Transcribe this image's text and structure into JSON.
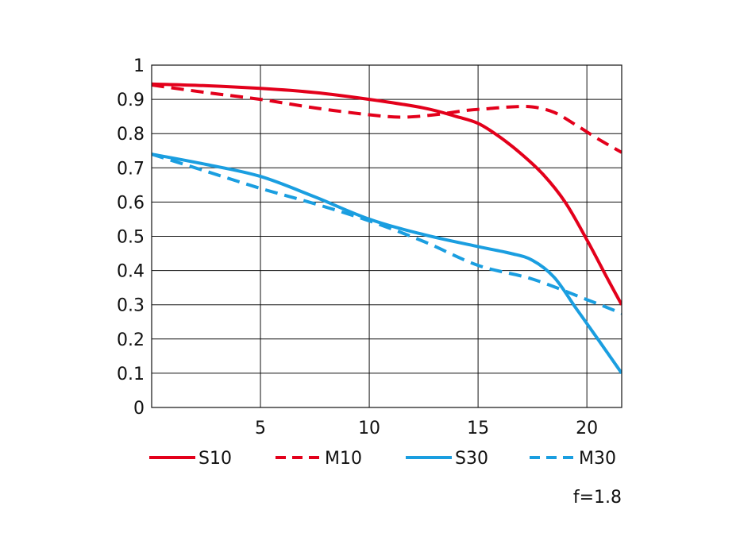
{
  "chart_data": {
    "type": "line",
    "title": "",
    "xlabel": "",
    "ylabel": "",
    "xlim": [
      0,
      21.6
    ],
    "ylim": [
      0,
      1
    ],
    "x_ticks": [
      5,
      10,
      15,
      20
    ],
    "y_ticks": [
      0,
      0.1,
      0.2,
      0.3,
      0.4,
      0.5,
      0.6,
      0.7,
      0.8,
      0.9,
      1
    ],
    "x_tick_labels": [
      "5",
      "10",
      "15",
      "20"
    ],
    "y_tick_labels": [
      "0",
      "0.1",
      "0.2",
      "0.3",
      "0.4",
      "0.5",
      "0.6",
      "0.7",
      "0.8",
      "0.9",
      "1"
    ],
    "grid": true,
    "legend_position": "bottom",
    "annotation": "f=1.8",
    "series": [
      {
        "name": "S10",
        "color": "#e3001b",
        "dash": "solid",
        "x": [
          0,
          2.5,
          5,
          7.5,
          10,
          12.5,
          14,
          15,
          16,
          17,
          18,
          19,
          20,
          21,
          21.6
        ],
        "y": [
          0.945,
          0.94,
          0.932,
          0.92,
          0.9,
          0.875,
          0.85,
          0.83,
          0.79,
          0.74,
          0.68,
          0.6,
          0.49,
          0.37,
          0.3
        ]
      },
      {
        "name": "M10",
        "color": "#e3001b",
        "dash": "dashed",
        "x": [
          0,
          2.5,
          5,
          7.5,
          10,
          11.5,
          13,
          14.5,
          15.5,
          16.5,
          17.5,
          18.5,
          19.5,
          20.5,
          21.6
        ],
        "y": [
          0.942,
          0.92,
          0.9,
          0.875,
          0.855,
          0.848,
          0.855,
          0.868,
          0.873,
          0.878,
          0.878,
          0.862,
          0.825,
          0.785,
          0.745
        ]
      },
      {
        "name": "S30",
        "color": "#1a9ee0",
        "dash": "solid",
        "x": [
          0,
          2.5,
          5,
          7.5,
          10,
          12.5,
          15,
          16.5,
          17.5,
          18.5,
          19.5,
          20.5,
          21.6
        ],
        "y": [
          0.74,
          0.71,
          0.675,
          0.615,
          0.55,
          0.505,
          0.47,
          0.45,
          0.43,
          0.38,
          0.29,
          0.2,
          0.1
        ]
      },
      {
        "name": "M30",
        "color": "#1a9ee0",
        "dash": "dashed",
        "x": [
          0,
          2.5,
          5,
          7.5,
          10,
          12.5,
          15,
          17.5,
          20,
          21.6
        ],
        "y": [
          0.74,
          0.69,
          0.64,
          0.595,
          0.545,
          0.485,
          0.415,
          0.375,
          0.315,
          0.275
        ]
      }
    ]
  }
}
